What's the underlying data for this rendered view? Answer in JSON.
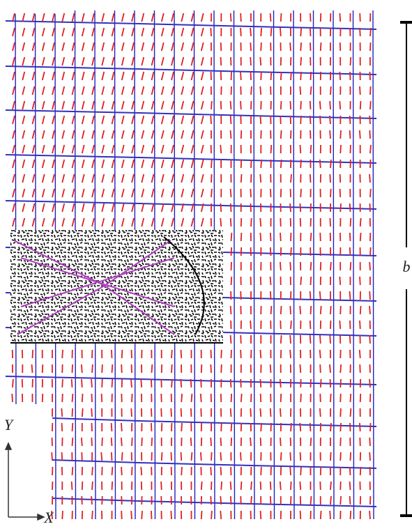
{
  "axes": {
    "y_label": "Y",
    "x_label": "X"
  },
  "dimension": {
    "label": "b"
  }
}
